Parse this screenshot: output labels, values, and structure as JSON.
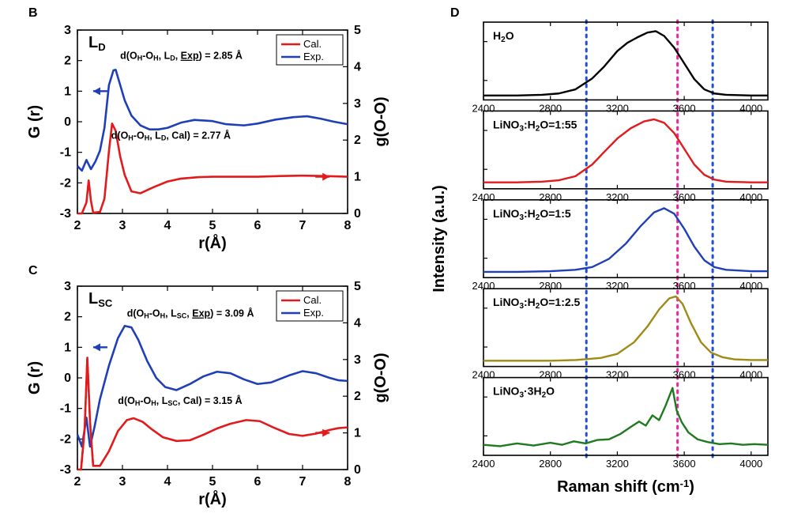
{
  "panel_B": {
    "label": "B",
    "title": "L",
    "title_sub": "D",
    "x_label": "r(Å)",
    "y_left_label": "G (r)",
    "y_right_label": "g(O-O)",
    "legend": {
      "cal": "Cal.",
      "exp": "Exp."
    },
    "colors": {
      "cal": "#e31a1c",
      "exp": "#1f3fb8"
    },
    "axis_fontsize": 16,
    "label_fontsize": 19,
    "xlim": [
      2,
      8
    ],
    "xtick_step": 1,
    "ylim_left": [
      -3,
      3
    ],
    "ylim_right": [
      0,
      5
    ],
    "ytick_step": 1,
    "annotations": {
      "exp": "d(O_H-O_H, L_D, Exp) = 2.85 Å",
      "cal": "d(O_H-O_H, L_D, Cal) = 2.77 Å"
    },
    "arrow_left_color": "#1f3fb8",
    "arrow_right_color": "#e31a1c",
    "exp_curve": [
      [
        2.0,
        -1.45
      ],
      [
        2.1,
        -1.6
      ],
      [
        2.2,
        -1.25
      ],
      [
        2.3,
        -1.55
      ],
      [
        2.4,
        -1.3
      ],
      [
        2.5,
        -0.95
      ],
      [
        2.6,
        -0.2
      ],
      [
        2.7,
        1.2
      ],
      [
        2.8,
        1.68
      ],
      [
        2.85,
        1.7
      ],
      [
        2.92,
        1.35
      ],
      [
        3.05,
        0.7
      ],
      [
        3.2,
        0.2
      ],
      [
        3.4,
        -0.12
      ],
      [
        3.6,
        -0.25
      ],
      [
        3.8,
        -0.25
      ],
      [
        4.0,
        -0.2
      ],
      [
        4.3,
        -0.03
      ],
      [
        4.6,
        0.06
      ],
      [
        5.0,
        0.02
      ],
      [
        5.3,
        -0.08
      ],
      [
        5.7,
        -0.12
      ],
      [
        6.0,
        -0.06
      ],
      [
        6.4,
        0.07
      ],
      [
        6.8,
        0.15
      ],
      [
        7.1,
        0.18
      ],
      [
        7.4,
        0.1
      ],
      [
        7.7,
        0.0
      ],
      [
        8.0,
        -0.08
      ]
    ],
    "cal_curve": [
      [
        2.0,
        0.0
      ],
      [
        2.1,
        0.0
      ],
      [
        2.2,
        0.3
      ],
      [
        2.25,
        0.9
      ],
      [
        2.3,
        0.35
      ],
      [
        2.35,
        0.02
      ],
      [
        2.5,
        0.04
      ],
      [
        2.6,
        0.4
      ],
      [
        2.7,
        1.7
      ],
      [
        2.77,
        2.45
      ],
      [
        2.85,
        2.25
      ],
      [
        2.95,
        1.55
      ],
      [
        3.05,
        1.05
      ],
      [
        3.2,
        0.6
      ],
      [
        3.4,
        0.55
      ],
      [
        3.7,
        0.72
      ],
      [
        4.0,
        0.87
      ],
      [
        4.3,
        0.95
      ],
      [
        4.7,
        0.99
      ],
      [
        5.0,
        1.0
      ],
      [
        5.5,
        1.0
      ],
      [
        6.0,
        1.0
      ],
      [
        6.5,
        1.02
      ],
      [
        7.0,
        1.03
      ],
      [
        7.5,
        1.02
      ],
      [
        8.0,
        1.0
      ]
    ]
  },
  "panel_C": {
    "label": "C",
    "title": "L",
    "title_sub": "SC",
    "x_label": "r(Å)",
    "y_left_label": "G (r)",
    "y_right_label": "g(O-O)",
    "legend": {
      "cal": "Cal.",
      "exp": "Exp."
    },
    "colors": {
      "cal": "#e31a1c",
      "exp": "#1f3fb8"
    },
    "xlim": [
      2,
      8
    ],
    "ylim_left": [
      -3,
      3
    ],
    "ylim_right": [
      0,
      5
    ],
    "annotations": {
      "exp": "d(O_H-O_H, L_SC, Exp) = 3.09 Å",
      "cal": "d(O_H-O_H, L_SC, Cal) = 3.15 Å"
    },
    "exp_curve": [
      [
        2.0,
        -1.85
      ],
      [
        2.1,
        -2.25
      ],
      [
        2.2,
        -1.3
      ],
      [
        2.28,
        -2.25
      ],
      [
        2.38,
        -1.6
      ],
      [
        2.5,
        -0.7
      ],
      [
        2.7,
        0.4
      ],
      [
        2.9,
        1.3
      ],
      [
        3.05,
        1.7
      ],
      [
        3.2,
        1.65
      ],
      [
        3.35,
        1.25
      ],
      [
        3.55,
        0.55
      ],
      [
        3.75,
        0.0
      ],
      [
        3.95,
        -0.3
      ],
      [
        4.2,
        -0.4
      ],
      [
        4.5,
        -0.2
      ],
      [
        4.8,
        0.05
      ],
      [
        5.1,
        0.2
      ],
      [
        5.4,
        0.15
      ],
      [
        5.7,
        -0.05
      ],
      [
        6.0,
        -0.2
      ],
      [
        6.3,
        -0.15
      ],
      [
        6.7,
        0.08
      ],
      [
        7.0,
        0.22
      ],
      [
        7.3,
        0.15
      ],
      [
        7.6,
        0.0
      ],
      [
        7.8,
        -0.08
      ],
      [
        8.0,
        -0.1
      ]
    ],
    "cal_curve": [
      [
        2.0,
        0.0
      ],
      [
        2.08,
        0.0
      ],
      [
        2.16,
        1.1
      ],
      [
        2.22,
        3.05
      ],
      [
        2.28,
        1.3
      ],
      [
        2.35,
        0.1
      ],
      [
        2.5,
        0.1
      ],
      [
        2.7,
        0.5
      ],
      [
        2.9,
        1.05
      ],
      [
        3.1,
        1.35
      ],
      [
        3.25,
        1.4
      ],
      [
        3.45,
        1.3
      ],
      [
        3.65,
        1.1
      ],
      [
        3.9,
        0.88
      ],
      [
        4.2,
        0.78
      ],
      [
        4.5,
        0.8
      ],
      [
        4.8,
        0.95
      ],
      [
        5.1,
        1.12
      ],
      [
        5.4,
        1.25
      ],
      [
        5.75,
        1.35
      ],
      [
        6.05,
        1.32
      ],
      [
        6.35,
        1.15
      ],
      [
        6.7,
        0.97
      ],
      [
        7.0,
        0.92
      ],
      [
        7.3,
        0.98
      ],
      [
        7.6,
        1.08
      ],
      [
        7.8,
        1.13
      ],
      [
        8.0,
        1.15
      ]
    ],
    "cal_dash_segment": [
      [
        2.08,
        0.0
      ],
      [
        2.16,
        1.1
      ],
      [
        2.22,
        3.05
      ],
      [
        2.28,
        1.3
      ],
      [
        2.35,
        0.1
      ]
    ]
  },
  "panel_D": {
    "label": "D",
    "x_label": "Raman shift (cm⁻¹)",
    "x_label_plain": "Raman shift",
    "x_label_unit": "cm",
    "x_label_exp": "-1",
    "y_label": "Intensity (a.u.)",
    "xlim": [
      2400,
      4100
    ],
    "xticks": [
      2400,
      2800,
      3200,
      3600,
      4000
    ],
    "guide_lines": {
      "blue": [
        3015,
        3770
      ],
      "magenta": [
        3560
      ]
    },
    "guide_colors": {
      "blue": "#1f4fd8",
      "magenta": "#e52aa0"
    },
    "rows": [
      {
        "label": "H₂O",
        "label_html": "H<sub>2</sub>O",
        "color": "#000000",
        "curve": [
          [
            2400,
            0.03
          ],
          [
            2600,
            0.03
          ],
          [
            2750,
            0.04
          ],
          [
            2850,
            0.06
          ],
          [
            2950,
            0.12
          ],
          [
            3050,
            0.28
          ],
          [
            3120,
            0.45
          ],
          [
            3200,
            0.68
          ],
          [
            3260,
            0.8
          ],
          [
            3320,
            0.88
          ],
          [
            3380,
            0.95
          ],
          [
            3430,
            0.97
          ],
          [
            3480,
            0.9
          ],
          [
            3540,
            0.73
          ],
          [
            3600,
            0.5
          ],
          [
            3660,
            0.27
          ],
          [
            3720,
            0.12
          ],
          [
            3780,
            0.06
          ],
          [
            3850,
            0.04
          ],
          [
            4000,
            0.03
          ],
          [
            4100,
            0.03
          ]
        ]
      },
      {
        "label": "LiNO₃:H₂O=1:55",
        "label_html": "LiNO<sub>3</sub>:H<sub>2</sub>O=1:55",
        "color": "#e31a1c",
        "curve": [
          [
            2400,
            0.06
          ],
          [
            2600,
            0.06
          ],
          [
            2750,
            0.07
          ],
          [
            2850,
            0.09
          ],
          [
            2950,
            0.15
          ],
          [
            3050,
            0.32
          ],
          [
            3120,
            0.5
          ],
          [
            3200,
            0.7
          ],
          [
            3280,
            0.85
          ],
          [
            3360,
            0.95
          ],
          [
            3420,
            0.98
          ],
          [
            3480,
            0.93
          ],
          [
            3540,
            0.78
          ],
          [
            3600,
            0.55
          ],
          [
            3660,
            0.32
          ],
          [
            3720,
            0.17
          ],
          [
            3780,
            0.1
          ],
          [
            3850,
            0.07
          ],
          [
            4000,
            0.06
          ],
          [
            4100,
            0.06
          ]
        ]
      },
      {
        "label": "LiNO₃:H₂O=1:5",
        "label_html": "LiNO<sub>3</sub>:H<sub>2</sub>O=1:5",
        "color": "#1f3fb8",
        "curve": [
          [
            2400,
            0.05
          ],
          [
            2600,
            0.05
          ],
          [
            2800,
            0.06
          ],
          [
            2950,
            0.08
          ],
          [
            3050,
            0.12
          ],
          [
            3150,
            0.24
          ],
          [
            3250,
            0.46
          ],
          [
            3340,
            0.72
          ],
          [
            3420,
            0.92
          ],
          [
            3480,
            0.98
          ],
          [
            3540,
            0.9
          ],
          [
            3600,
            0.68
          ],
          [
            3660,
            0.42
          ],
          [
            3720,
            0.22
          ],
          [
            3780,
            0.12
          ],
          [
            3850,
            0.08
          ],
          [
            4000,
            0.06
          ],
          [
            4100,
            0.06
          ]
        ]
      },
      {
        "label": "LiNO₃:H₂O=1:2.5",
        "label_html": "LiNO<sub>3</sub>:H<sub>2</sub>O=1:2.5",
        "color": "#9e8a15",
        "curve": [
          [
            2400,
            0.05
          ],
          [
            2600,
            0.05
          ],
          [
            2800,
            0.05
          ],
          [
            2950,
            0.06
          ],
          [
            3100,
            0.09
          ],
          [
            3200,
            0.15
          ],
          [
            3300,
            0.32
          ],
          [
            3380,
            0.55
          ],
          [
            3450,
            0.8
          ],
          [
            3510,
            0.96
          ],
          [
            3550,
            0.99
          ],
          [
            3590,
            0.88
          ],
          [
            3640,
            0.6
          ],
          [
            3700,
            0.32
          ],
          [
            3760,
            0.17
          ],
          [
            3830,
            0.1
          ],
          [
            3900,
            0.07
          ],
          [
            4000,
            0.06
          ],
          [
            4100,
            0.06
          ]
        ]
      },
      {
        "label": "LiNO₃·3H₂O",
        "label_html": "LiNO<sub>3</sub>·3H<sub>2</sub>O",
        "color": "#1e7a1e",
        "curve": [
          [
            2400,
            0.12
          ],
          [
            2500,
            0.1
          ],
          [
            2600,
            0.14
          ],
          [
            2700,
            0.11
          ],
          [
            2800,
            0.15
          ],
          [
            2870,
            0.12
          ],
          [
            2940,
            0.17
          ],
          [
            3010,
            0.14
          ],
          [
            3080,
            0.19
          ],
          [
            3150,
            0.2
          ],
          [
            3220,
            0.28
          ],
          [
            3280,
            0.38
          ],
          [
            3330,
            0.46
          ],
          [
            3370,
            0.4
          ],
          [
            3410,
            0.55
          ],
          [
            3450,
            0.48
          ],
          [
            3490,
            0.7
          ],
          [
            3530,
            0.95
          ],
          [
            3555,
            0.62
          ],
          [
            3585,
            0.45
          ],
          [
            3625,
            0.3
          ],
          [
            3680,
            0.2
          ],
          [
            3740,
            0.16
          ],
          [
            3810,
            0.13
          ],
          [
            3880,
            0.14
          ],
          [
            3950,
            0.12
          ],
          [
            4020,
            0.13
          ],
          [
            4100,
            0.12
          ]
        ]
      }
    ]
  }
}
